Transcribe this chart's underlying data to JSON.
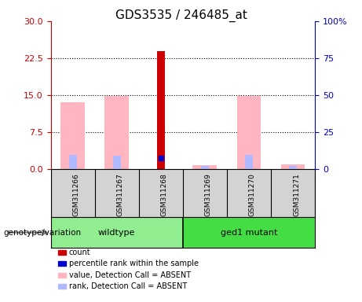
{
  "title": "GDS3535 / 246485_at",
  "samples": [
    "GSM311266",
    "GSM311267",
    "GSM311268",
    "GSM311269",
    "GSM311270",
    "GSM311271"
  ],
  "groups": [
    "wildtype",
    "wildtype",
    "wildtype",
    "ged1 mutant",
    "ged1 mutant",
    "ged1 mutant"
  ],
  "ylim_left": [
    0,
    30
  ],
  "ylim_right": [
    0,
    100
  ],
  "yticks_left": [
    0,
    7.5,
    15,
    22.5,
    30
  ],
  "yticks_right": [
    0,
    25,
    50,
    75,
    100
  ],
  "yticklabels_right": [
    "0",
    "25",
    "50",
    "75",
    "100%"
  ],
  "left_color": "#cc0000",
  "right_color": "#0000cc",
  "absent_value_color": "#ffb6c1",
  "absent_rank_color": "#b0b8ff",
  "bar_values_absent": [
    13.5,
    14.8,
    null,
    0.8,
    14.8,
    1.0
  ],
  "bar_ranks_absent": [
    9.5,
    9.0,
    null,
    2.3,
    9.5,
    2.3
  ],
  "bar_count": [
    null,
    null,
    24.0,
    null,
    null,
    null
  ],
  "bar_rank_present": [
    null,
    null,
    7.7,
    null,
    null,
    null
  ],
  "count_color": "#cc0000",
  "rank_color": "#0000cc",
  "legend_items": [
    {
      "label": "count",
      "color": "#cc0000"
    },
    {
      "label": "percentile rank within the sample",
      "color": "#0000cc"
    },
    {
      "label": "value, Detection Call = ABSENT",
      "color": "#ffb6c1"
    },
    {
      "label": "rank, Detection Call = ABSENT",
      "color": "#b0b8ff"
    }
  ],
  "sample_area_color": "#d3d3d3",
  "wildtype_color": "#90ee90",
  "mutant_color": "#44dd44",
  "plot_bg": "#ffffff",
  "title_fontsize": 11
}
